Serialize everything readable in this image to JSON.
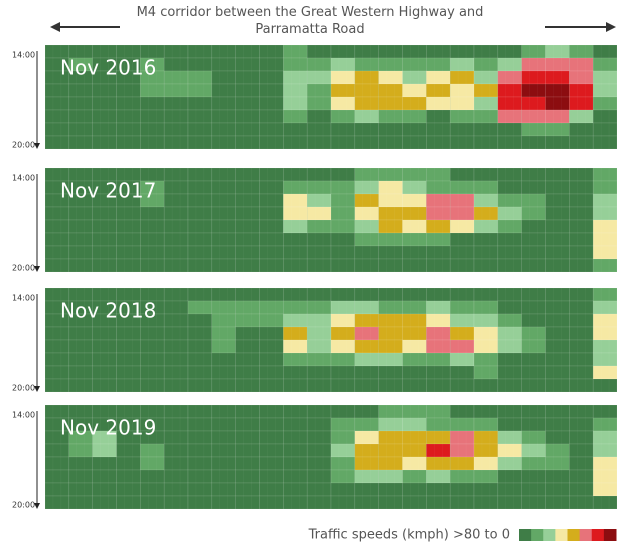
{
  "header": {
    "title": "M4 corridor between the Great Western Highway and Parramatta Road",
    "legend_label": "Traffic speeds (kmph) >80 to 0"
  },
  "colorbar": {
    "range": [
      80,
      0
    ],
    "colors": [
      "#3f7d47",
      "#62a866",
      "#96cf98",
      "#f6e9a4",
      "#d4ad1c",
      "#e7737a",
      "#dd1a1e",
      "#8c0d10"
    ]
  },
  "chart_data": [
    {
      "type": "heatmap",
      "title": "Nov 2016",
      "ylim": [
        0,
        8
      ],
      "yticks": [
        {
          "value": 0,
          "label": "14:00"
        },
        {
          "value": 8,
          "label": "20:00"
        }
      ],
      "values": [
        [
          85,
          85,
          85,
          85,
          85,
          85,
          85,
          85,
          85,
          85,
          70,
          85,
          85,
          85,
          85,
          85,
          85,
          85,
          85,
          85,
          70,
          60,
          70,
          85
        ],
        [
          85,
          70,
          85,
          85,
          70,
          85,
          85,
          85,
          85,
          85,
          70,
          70,
          60,
          70,
          70,
          70,
          70,
          60,
          70,
          60,
          30,
          30,
          30,
          70
        ],
        [
          85,
          85,
          85,
          85,
          70,
          70,
          70,
          85,
          85,
          85,
          60,
          60,
          50,
          40,
          50,
          60,
          50,
          40,
          60,
          30,
          20,
          20,
          30,
          60
        ],
        [
          85,
          85,
          85,
          85,
          70,
          70,
          70,
          85,
          85,
          85,
          60,
          70,
          40,
          40,
          40,
          50,
          40,
          50,
          40,
          20,
          10,
          10,
          20,
          60
        ],
        [
          85,
          85,
          85,
          85,
          85,
          85,
          85,
          85,
          85,
          85,
          60,
          70,
          50,
          40,
          40,
          40,
          50,
          50,
          60,
          20,
          20,
          10,
          20,
          70
        ],
        [
          85,
          85,
          85,
          85,
          85,
          85,
          85,
          85,
          85,
          85,
          70,
          85,
          70,
          60,
          70,
          70,
          85,
          70,
          70,
          30,
          30,
          30,
          60,
          85
        ],
        [
          85,
          85,
          85,
          85,
          85,
          85,
          85,
          85,
          85,
          85,
          85,
          85,
          85,
          85,
          85,
          85,
          85,
          85,
          85,
          85,
          70,
          70,
          85,
          85
        ],
        [
          85,
          85,
          85,
          85,
          85,
          85,
          85,
          85,
          85,
          85,
          85,
          85,
          85,
          85,
          85,
          85,
          85,
          85,
          85,
          85,
          85,
          85,
          85,
          85
        ]
      ]
    },
    {
      "type": "heatmap",
      "title": "Nov 2017",
      "ylim": [
        0,
        8
      ],
      "yticks": [
        {
          "value": 0,
          "label": "14:00"
        },
        {
          "value": 8,
          "label": "20:00"
        }
      ],
      "values": [
        [
          85,
          85,
          85,
          85,
          85,
          85,
          85,
          85,
          85,
          85,
          85,
          85,
          85,
          70,
          70,
          70,
          70,
          85,
          85,
          85,
          85,
          85,
          85,
          70
        ],
        [
          85,
          85,
          85,
          85,
          70,
          85,
          85,
          85,
          85,
          85,
          70,
          70,
          70,
          60,
          50,
          60,
          70,
          70,
          70,
          85,
          85,
          85,
          85,
          70
        ],
        [
          85,
          85,
          85,
          85,
          70,
          85,
          85,
          85,
          85,
          85,
          50,
          60,
          70,
          40,
          50,
          50,
          30,
          30,
          60,
          70,
          70,
          85,
          85,
          60
        ],
        [
          85,
          85,
          85,
          85,
          85,
          85,
          85,
          85,
          85,
          85,
          50,
          50,
          70,
          50,
          40,
          40,
          30,
          30,
          40,
          60,
          70,
          85,
          85,
          60
        ],
        [
          85,
          85,
          85,
          85,
          85,
          85,
          85,
          85,
          85,
          85,
          60,
          70,
          70,
          60,
          40,
          50,
          40,
          50,
          60,
          70,
          85,
          85,
          85,
          50
        ],
        [
          85,
          85,
          85,
          85,
          85,
          85,
          85,
          85,
          85,
          85,
          85,
          85,
          85,
          70,
          70,
          70,
          70,
          85,
          85,
          85,
          85,
          85,
          85,
          50
        ],
        [
          85,
          85,
          85,
          85,
          85,
          85,
          85,
          85,
          85,
          85,
          85,
          85,
          85,
          85,
          85,
          85,
          85,
          85,
          85,
          85,
          85,
          85,
          85,
          50
        ],
        [
          85,
          85,
          85,
          85,
          85,
          85,
          85,
          85,
          85,
          85,
          85,
          85,
          85,
          85,
          85,
          85,
          85,
          85,
          85,
          85,
          85,
          85,
          85,
          70
        ]
      ]
    },
    {
      "type": "heatmap",
      "title": "Nov 2018",
      "ylim": [
        0,
        8
      ],
      "yticks": [
        {
          "value": 0,
          "label": "14:00"
        },
        {
          "value": 8,
          "label": "20:00"
        }
      ],
      "values": [
        [
          85,
          85,
          85,
          85,
          85,
          85,
          85,
          85,
          85,
          85,
          85,
          85,
          85,
          85,
          85,
          85,
          85,
          85,
          85,
          85,
          85,
          85,
          85,
          70
        ],
        [
          85,
          85,
          85,
          85,
          85,
          85,
          70,
          70,
          70,
          70,
          70,
          70,
          60,
          60,
          70,
          70,
          60,
          70,
          70,
          85,
          85,
          85,
          85,
          60
        ],
        [
          85,
          85,
          85,
          85,
          85,
          85,
          85,
          70,
          70,
          70,
          60,
          60,
          50,
          40,
          40,
          40,
          50,
          60,
          60,
          70,
          85,
          85,
          85,
          50
        ],
        [
          85,
          85,
          85,
          85,
          85,
          85,
          85,
          70,
          85,
          85,
          40,
          60,
          40,
          30,
          40,
          40,
          30,
          40,
          50,
          60,
          70,
          85,
          85,
          50
        ],
        [
          85,
          85,
          85,
          85,
          85,
          85,
          85,
          70,
          85,
          85,
          50,
          60,
          50,
          40,
          40,
          50,
          30,
          30,
          50,
          60,
          70,
          85,
          85,
          60
        ],
        [
          85,
          85,
          85,
          85,
          85,
          85,
          85,
          85,
          85,
          85,
          70,
          70,
          70,
          60,
          60,
          70,
          70,
          60,
          70,
          85,
          85,
          85,
          85,
          60
        ],
        [
          85,
          85,
          85,
          85,
          85,
          85,
          85,
          85,
          85,
          85,
          85,
          85,
          85,
          85,
          85,
          85,
          85,
          85,
          70,
          85,
          85,
          85,
          85,
          50
        ],
        [
          85,
          85,
          85,
          85,
          85,
          85,
          85,
          85,
          85,
          85,
          85,
          85,
          85,
          85,
          85,
          85,
          85,
          85,
          85,
          85,
          85,
          85,
          85,
          85
        ]
      ]
    },
    {
      "type": "heatmap",
      "title": "Nov 2019",
      "ylim": [
        0,
        8
      ],
      "yticks": [
        {
          "value": 0,
          "label": "14:00"
        },
        {
          "value": 8,
          "label": "20:00"
        }
      ],
      "values": [
        [
          85,
          85,
          85,
          85,
          85,
          85,
          85,
          85,
          85,
          85,
          85,
          85,
          85,
          85,
          70,
          70,
          70,
          85,
          85,
          85,
          85,
          85,
          85,
          85
        ],
        [
          85,
          85,
          85,
          85,
          85,
          85,
          85,
          85,
          85,
          85,
          85,
          85,
          70,
          70,
          60,
          60,
          70,
          70,
          70,
          85,
          85,
          85,
          85,
          70
        ],
        [
          85,
          70,
          60,
          85,
          85,
          85,
          85,
          85,
          85,
          85,
          85,
          85,
          70,
          50,
          40,
          40,
          40,
          30,
          40,
          60,
          70,
          85,
          85,
          60
        ],
        [
          85,
          70,
          60,
          85,
          70,
          85,
          85,
          85,
          85,
          85,
          85,
          85,
          60,
          40,
          40,
          40,
          20,
          30,
          40,
          50,
          60,
          70,
          85,
          60
        ],
        [
          85,
          85,
          85,
          85,
          70,
          85,
          85,
          85,
          85,
          85,
          85,
          85,
          70,
          40,
          40,
          50,
          40,
          40,
          50,
          60,
          70,
          70,
          85,
          50
        ],
        [
          85,
          85,
          85,
          85,
          85,
          85,
          85,
          85,
          85,
          85,
          85,
          85,
          70,
          60,
          60,
          70,
          60,
          70,
          70,
          85,
          85,
          85,
          85,
          50
        ],
        [
          85,
          85,
          85,
          85,
          85,
          85,
          85,
          85,
          85,
          85,
          85,
          85,
          85,
          85,
          85,
          85,
          85,
          85,
          85,
          85,
          85,
          85,
          85,
          50
        ],
        [
          85,
          85,
          85,
          85,
          85,
          85,
          85,
          85,
          85,
          85,
          85,
          85,
          85,
          85,
          85,
          85,
          85,
          85,
          85,
          85,
          85,
          85,
          85,
          85
        ]
      ]
    }
  ]
}
